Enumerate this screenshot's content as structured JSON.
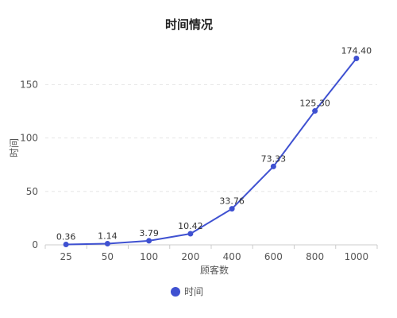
{
  "chart_data": {
    "type": "line",
    "title": "时间情况",
    "xlabel": "顾客数",
    "ylabel": "时间",
    "categories": [
      "25",
      "50",
      "100",
      "200",
      "400",
      "600",
      "800",
      "1000"
    ],
    "series": [
      {
        "name": "时间",
        "values": [
          0.36,
          1.14,
          3.79,
          10.42,
          33.76,
          73.33,
          125.3,
          174.4
        ],
        "labels": [
          "0.36",
          "1.14",
          "3.79",
          "10.42",
          "33.76",
          "73.33",
          "125.30",
          "174.40"
        ]
      }
    ],
    "ylim": [
      0,
      180
    ],
    "yticks": [
      0,
      50,
      100,
      150
    ],
    "ytick_labels": [
      "0",
      "50",
      "100",
      "150"
    ],
    "grid": true,
    "legend_position": "bottom",
    "colors": {
      "series": "#3f51d1",
      "grid": "#e6e6e6",
      "axis": "#cccccc"
    }
  }
}
